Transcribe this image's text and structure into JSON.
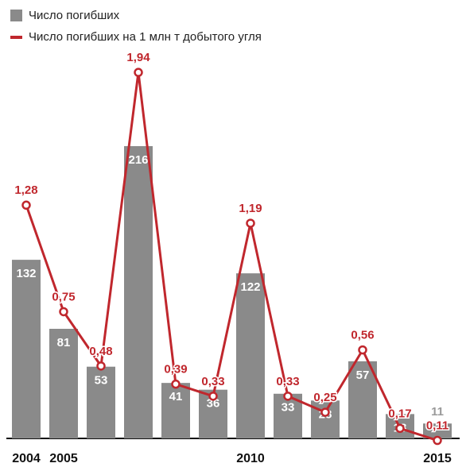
{
  "chart_data": {
    "type": "bar",
    "categories": [
      "2004",
      "2005",
      null,
      null,
      null,
      null,
      "2010",
      null,
      null,
      null,
      null,
      "2015"
    ],
    "series": [
      {
        "name": "Число погибших",
        "color": "#8a8a8a",
        "values": [
          132,
          81,
          53,
          216,
          41,
          36,
          122,
          33,
          28,
          57,
          18,
          11
        ]
      },
      {
        "name": "Число погибших на 1 млн т  добытого угля",
        "type": "line",
        "axis": "y2",
        "color": "#c0272d",
        "values": [
          1.28,
          0.75,
          0.48,
          1.94,
          0.39,
          0.33,
          1.19,
          0.33,
          0.25,
          0.56,
          0.17,
          0.11
        ],
        "value_labels": [
          "1,28",
          "0,75",
          "0,48",
          "1,94",
          "0,39",
          "0,33",
          "1,19",
          "0,33",
          "0,25",
          "0,56",
          "0,17",
          "0,11"
        ]
      }
    ],
    "ylim": [
      0,
      324
    ],
    "y2lim": [
      0.12,
      2.3
    ]
  }
}
